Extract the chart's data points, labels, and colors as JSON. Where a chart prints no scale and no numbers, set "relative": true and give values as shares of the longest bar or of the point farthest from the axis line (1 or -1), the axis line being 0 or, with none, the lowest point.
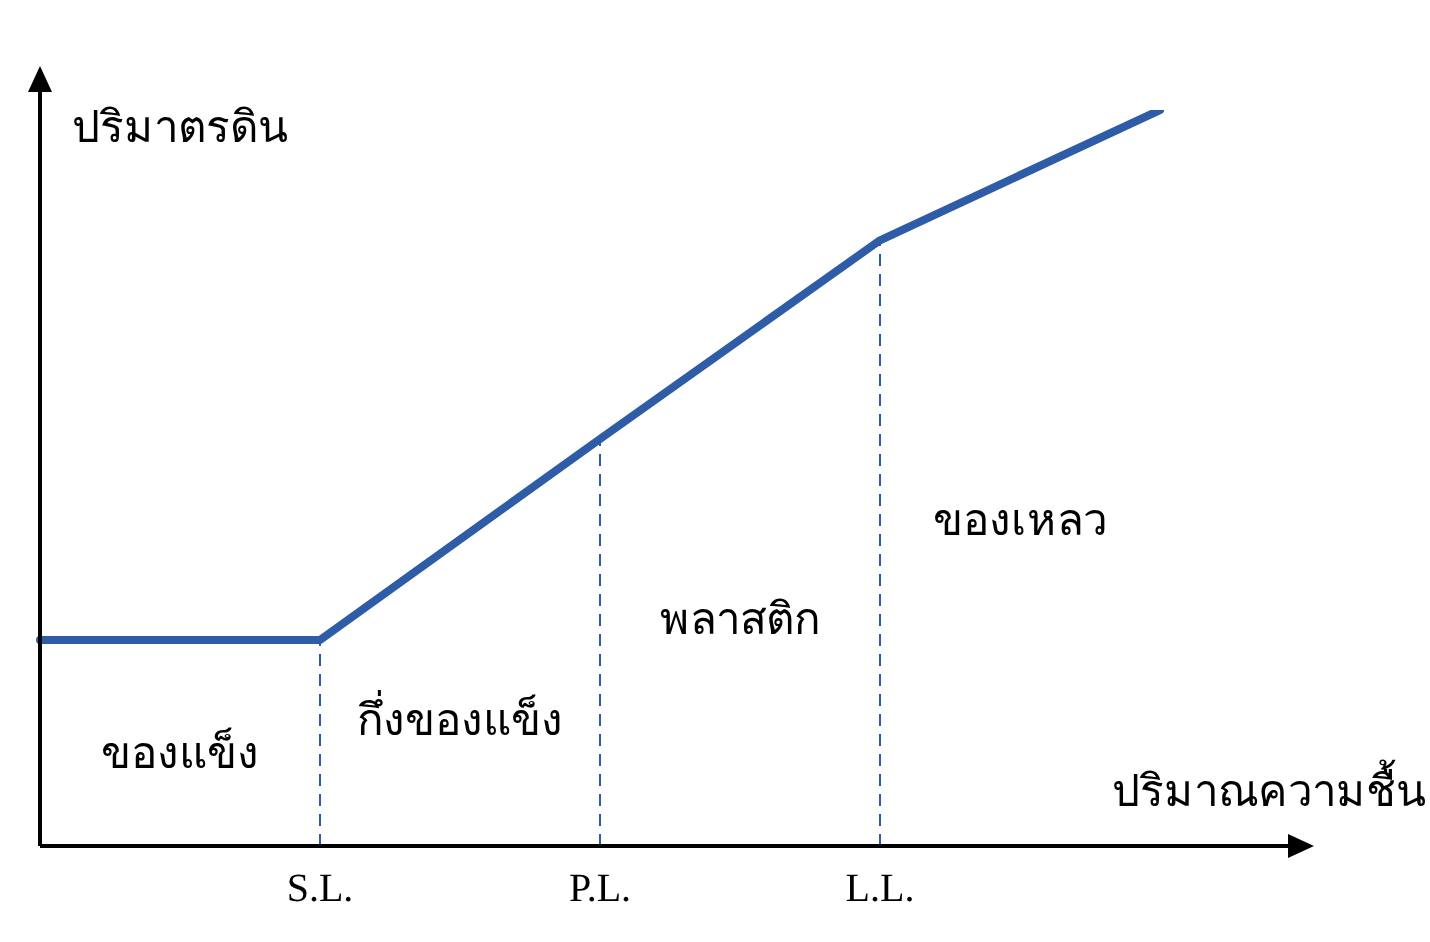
{
  "chart_data": {
    "type": "line",
    "relative": true,
    "xlabel": "ปริมาณความชื้น",
    "ylabel": "ปริมาตรดิน",
    "categories": [
      null,
      "S.L.",
      "P.L.",
      "L.L.",
      null
    ],
    "series": [
      {
        "color": "#2e5ca6",
        "values": [
          0.28,
          0.28,
          0.553,
          0.823,
          1
        ]
      }
    ],
    "ref_lines": [
      {
        "axis": "x",
        "value": "S.L.",
        "line_style": "dashed",
        "color": "#2e5ca6"
      },
      {
        "axis": "x",
        "value": "P.L.",
        "line_style": "dashed",
        "color": "#2e5ca6"
      },
      {
        "axis": "x",
        "value": "L.L.",
        "line_style": "dashed",
        "color": "#2e5ca6"
      }
    ],
    "annotations": [
      "ของแข็ง",
      "กึ่งของแข็ง",
      "พลาสติก",
      "ของเหลว"
    ],
    "grid": false,
    "legend": false,
    "marker": "none",
    "line_style": "solid"
  }
}
